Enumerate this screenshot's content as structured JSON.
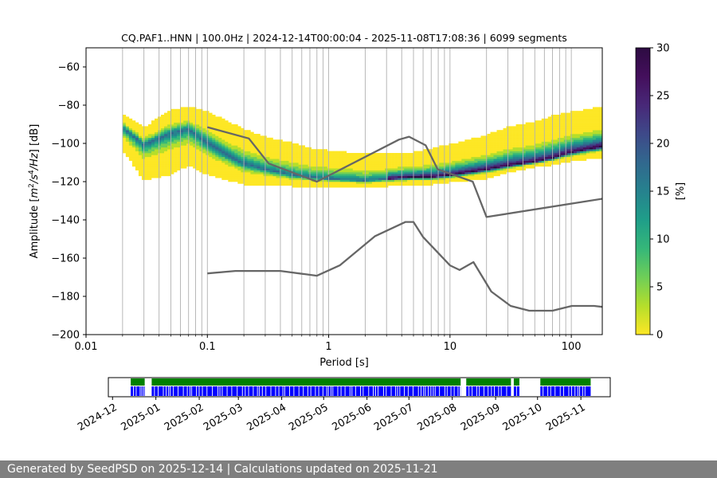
{
  "chart_data": [
    {
      "type": "heatmap",
      "title": "CQ.PAF1..HNN | 100.0Hz | 2024-12-14T00:00:04 - 2025-11-08T17:08:36 | 6099 segments",
      "xlabel": "Period [s]",
      "ylabel": "Amplitude [m²/s⁴/Hz] [dB]",
      "x_scale": "log",
      "xlim": [
        0.01,
        180
      ],
      "ylim": [
        -200,
        -50
      ],
      "x_ticks": [
        0.01,
        0.1,
        1,
        10,
        100
      ],
      "x_tick_labels": [
        "0.01",
        "0.1",
        "1",
        "10",
        "100"
      ],
      "y_ticks": [
        -200,
        -180,
        -160,
        -140,
        -120,
        -100,
        -80,
        -60
      ],
      "y_tick_labels": [
        "−200",
        "−180",
        "−160",
        "−140",
        "−120",
        "−100",
        "−80",
        "−60"
      ],
      "grid": "vertical lines at log period steps",
      "density_ridge": {
        "period": [
          0.02,
          0.03,
          0.05,
          0.07,
          0.1,
          0.15,
          0.2,
          0.3,
          0.5,
          0.7,
          1,
          2,
          3,
          5,
          7,
          10,
          20,
          30,
          50,
          70,
          100,
          180
        ],
        "mode_db": [
          -92,
          -101,
          -95,
          -93,
          -100,
          -107,
          -111,
          -114,
          -117,
          -118,
          -119,
          -120,
          -119,
          -118,
          -118,
          -117,
          -114,
          -112,
          -110,
          -108,
          -105,
          -102
        ],
        "upper_db": [
          -85,
          -92,
          -83,
          -81,
          -84,
          -89,
          -93,
          -97,
          -100,
          -103,
          -104,
          -106,
          -106,
          -105,
          -103,
          -101,
          -96,
          -92,
          -89,
          -86,
          -84,
          -81
        ],
        "lower_db": [
          -104,
          -120,
          -117,
          -112,
          -117,
          -120,
          -122,
          -122,
          -123,
          -123,
          -123,
          -123,
          -123,
          -122,
          -122,
          -121,
          -119,
          -116,
          -113,
          -112,
          -110,
          -108
        ]
      },
      "noise_models": [
        {
          "name": "",
          "period": [
            0.1,
            0.17,
            0.4,
            0.8,
            1.24,
            2.4,
            4.3,
            5,
            6,
            10,
            12,
            15.6,
            21.9,
            31.6,
            45,
            70,
            101,
            154,
            180
          ],
          "db": [
            -168,
            -166.7,
            -166.7,
            -169.2,
            -163.7,
            -148.6,
            -141.1,
            -141.1,
            -149,
            -163.8,
            -166.2,
            -162.1,
            -177.5,
            -185,
            -187.5,
            -187.5,
            -185,
            -185,
            -185.5
          ]
        },
        {
          "name": "",
          "period": [
            0.1,
            0.22,
            0.32,
            0.8,
            3.8,
            4.6,
            6.3,
            7.9,
            15.4,
            20,
            354.8
          ],
          "db": [
            -91.5,
            -97.4,
            -110.5,
            -120,
            -98,
            -96.5,
            -101,
            -113.5,
            -120,
            -138.5,
            -126
          ]
        }
      ],
      "colorbar": {
        "label": "[%]",
        "range": [
          0,
          30
        ],
        "ticks": [
          0,
          5,
          10,
          15,
          20,
          25,
          30
        ],
        "colormap": "viridis_r"
      }
    },
    {
      "type": "timeline",
      "x_tick_labels": [
        "2024-12",
        "2025-01",
        "2025-02",
        "2025-03",
        "2025-04",
        "2025-05",
        "2025-06",
        "2025-07",
        "2025-08",
        "2025-09",
        "2025-10",
        "2025-11"
      ],
      "xlim": [
        "2024-11-28",
        "2025-11-22"
      ],
      "data_availability_color": "#008000",
      "psd_used_color": "#0000ff",
      "coverage": [
        [
          "2024-12-14",
          "2024-12-24"
        ],
        [
          "2024-12-29",
          "2025-08-07"
        ],
        [
          "2025-08-11",
          "2025-09-12"
        ],
        [
          "2025-09-14",
          "2025-09-18"
        ],
        [
          "2025-10-03",
          "2025-11-08"
        ]
      ]
    }
  ],
  "footer": {
    "text": "Generated by SeedPSD on 2025-12-14 | Calculations updated on 2025-11-21"
  }
}
